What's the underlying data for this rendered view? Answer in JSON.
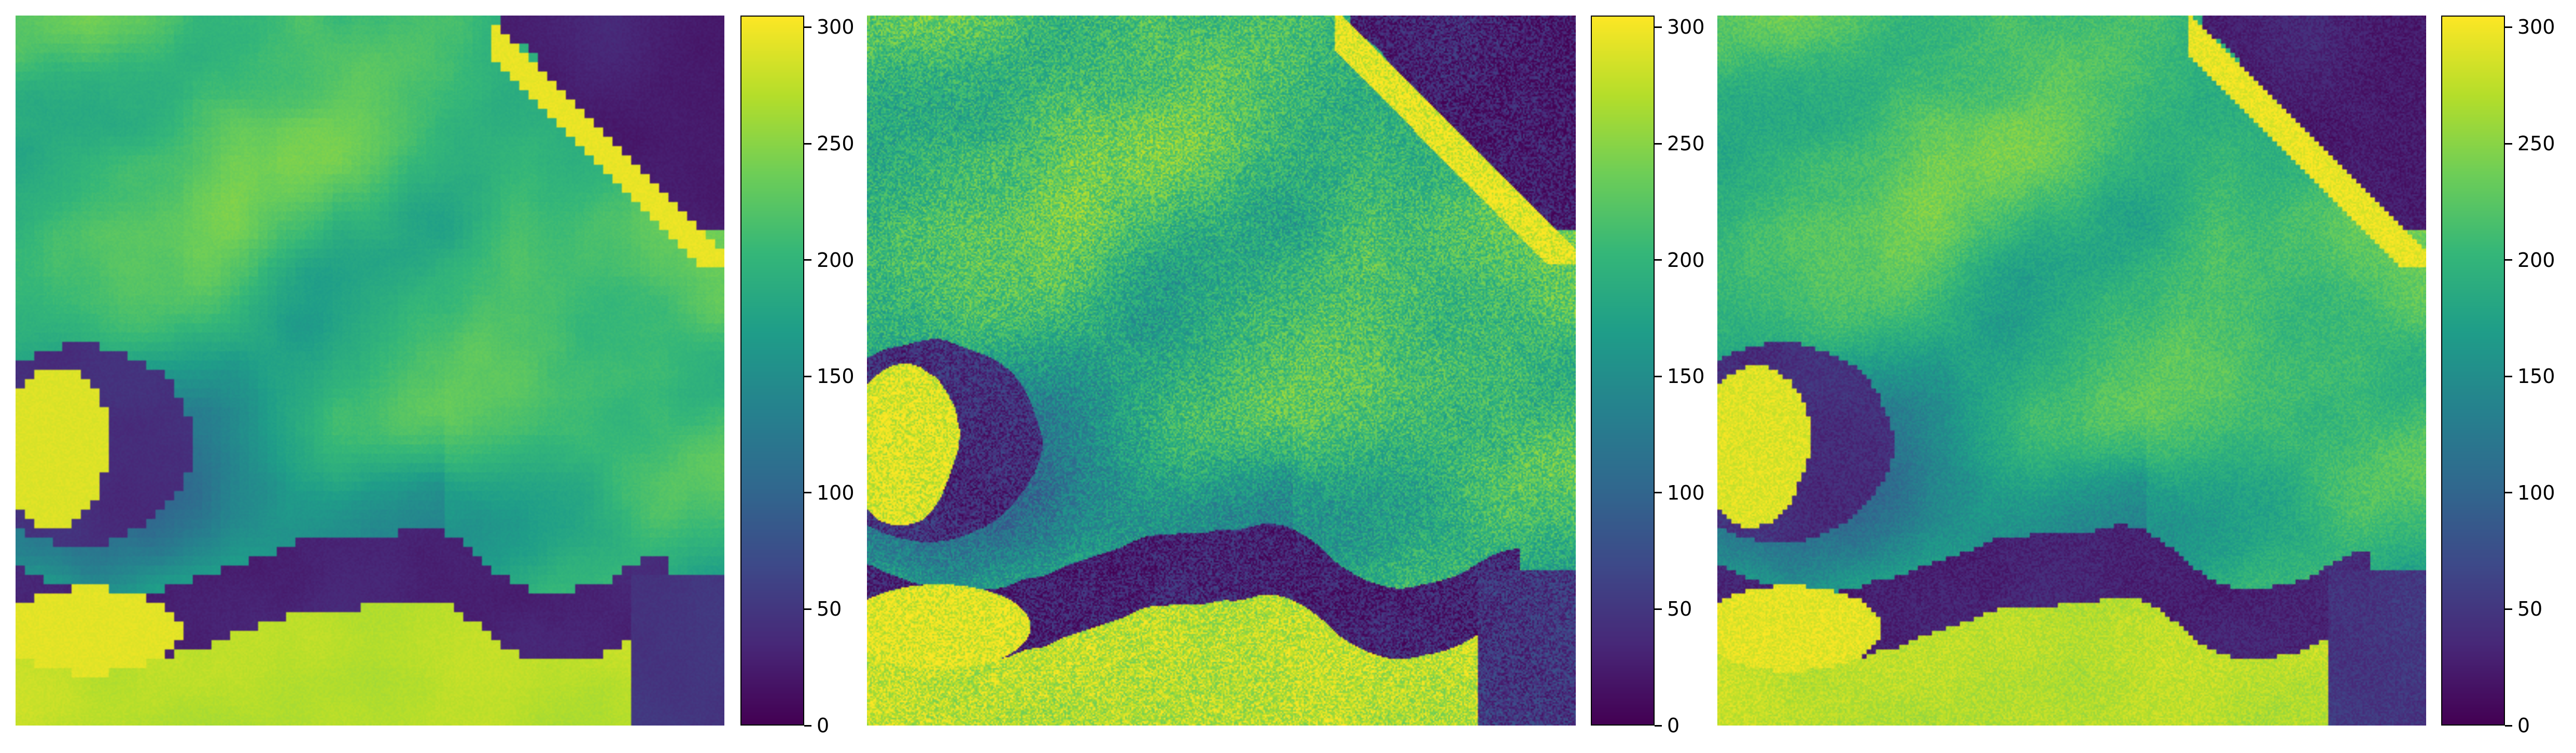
{
  "figure": {
    "layout": "three image panels each with a vertical colorbar",
    "colormap": "viridis",
    "colormap_stops": [
      "#440154",
      "#482878",
      "#3e4989",
      "#31688e",
      "#26828e",
      "#1f9e89",
      "#35b779",
      "#6ece58",
      "#b5de2b",
      "#fde725"
    ],
    "value_range": [
      0,
      305
    ],
    "panels": [
      {
        "name": "panel-1",
        "texture": "smooth"
      },
      {
        "name": "panel-2",
        "texture": "noisy"
      },
      {
        "name": "panel-3",
        "texture": "medium"
      }
    ],
    "colorbar": {
      "ticks": [
        {
          "value": 0,
          "label": "0"
        },
        {
          "value": 50,
          "label": "50"
        },
        {
          "value": 100,
          "label": "100"
        },
        {
          "value": 150,
          "label": "150"
        },
        {
          "value": 200,
          "label": "200"
        },
        {
          "value": 250,
          "label": "250"
        },
        {
          "value": 300,
          "label": "300"
        }
      ]
    }
  }
}
